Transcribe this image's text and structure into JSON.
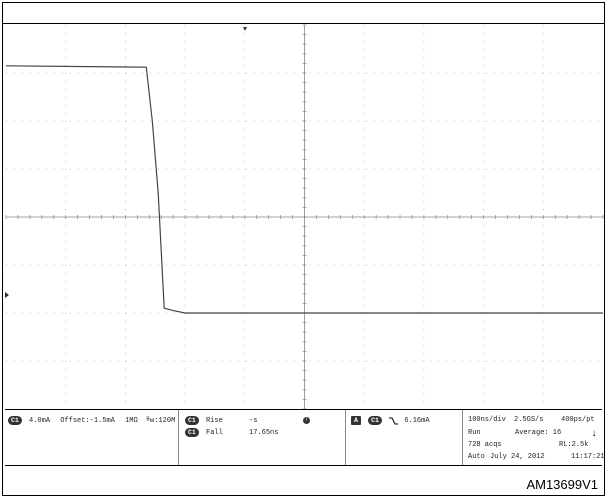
{
  "chart_data": {
    "type": "line",
    "title": "",
    "xlabel": "",
    "ylabel": "",
    "grid": true,
    "x_divisions": 10,
    "y_divisions": 8,
    "series": [
      {
        "x": [
          0.0,
          2.35,
          2.45,
          2.55,
          2.65,
          2.8,
          3.0,
          10.0
        ],
        "y": [
          3.15,
          3.12,
          2.0,
          0.5,
          -1.9,
          -1.95,
          -2.0,
          -2.0
        ]
      }
    ]
  },
  "status": {
    "ch1_badge": "C1",
    "ch1_scale": "4.0mA",
    "ch1_offset": "Offset:-1.5mA",
    "ch1_impedance": "1MΩ",
    "ch1_bandwidth": "ᴮw:120M",
    "meas1_badge": "C1",
    "meas1_label": "Rise",
    "meas1_value": "-s",
    "meas_icon": "!",
    "meas2_badge": "C1",
    "meas2_label": "Fall",
    "meas2_value": "17.65ns",
    "trig_mode_badge": "A",
    "trig_ch_badge": "C1",
    "trig_level": "6.16mA",
    "timebase": "100ns/div",
    "sample_rate": "2.5GS/s",
    "record_pt": "400ps/pt",
    "run_state": "Run",
    "average": "Average: 16",
    "acqs": "728 acqs",
    "record_length": "RL:2.5k",
    "auto": "Auto",
    "date": "July 24, 2012",
    "time": "11:17:21"
  },
  "figure_id": "AM13699V1"
}
